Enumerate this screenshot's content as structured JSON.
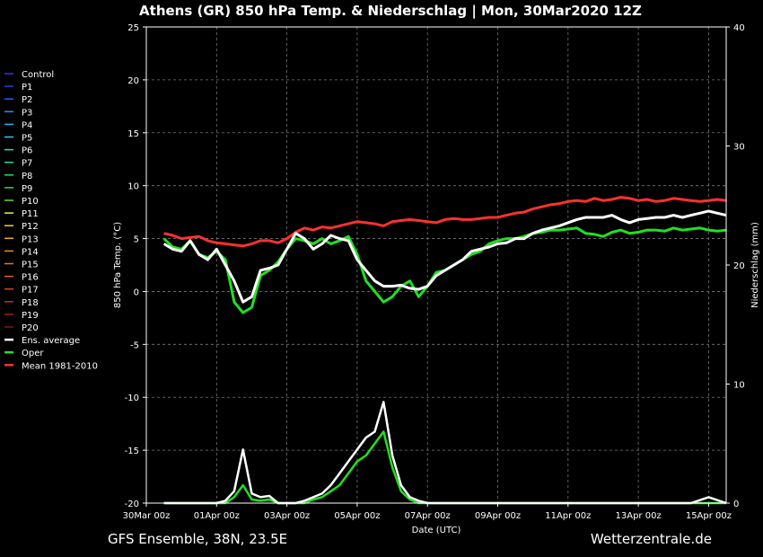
{
  "chart_data": {
    "type": "line",
    "title": "Athens  (GR)  850 hPa Temp. & Niederschlag | Mon, 30Mar2020 12Z",
    "xlabel": "Date (UTC)",
    "ylabel": "850 hPa Temp. (°C)",
    "y2label": "Niederschlag (mm)",
    "footer_left": "GFS Ensemble, 38N, 23.5E",
    "footer_right": "Wetterzentrale.de",
    "ylim": [
      -20,
      25
    ],
    "y2lim": [
      0,
      40
    ],
    "yticks": [
      25,
      20,
      15,
      10,
      5,
      0,
      -5,
      -10,
      -15,
      -20
    ],
    "y2ticks": [
      40,
      30,
      20,
      10,
      0
    ],
    "xlim": [
      0,
      16.5
    ],
    "xticks": [
      {
        "x": 0,
        "label": "30Mar 00z"
      },
      {
        "x": 2,
        "label": "01Apr 00z"
      },
      {
        "x": 4,
        "label": "03Apr 00z"
      },
      {
        "x": 6,
        "label": "05Apr 00z"
      },
      {
        "x": 8,
        "label": "07Apr 00z"
      },
      {
        "x": 10,
        "label": "09Apr 00z"
      },
      {
        "x": 12,
        "label": "11Apr 00z"
      },
      {
        "x": 14,
        "label": "13Apr 00z"
      },
      {
        "x": 16,
        "label": "15Apr 00z"
      }
    ],
    "grid": true,
    "legend_position": "left",
    "legend": [
      {
        "name": "Control",
        "color": "#3030ff"
      },
      {
        "name": "P1",
        "color": "#2040e0"
      },
      {
        "name": "P2",
        "color": "#2060ff"
      },
      {
        "name": "P3",
        "color": "#2090ff"
      },
      {
        "name": "P4",
        "color": "#20b0ff"
      },
      {
        "name": "P5",
        "color": "#20d0f0"
      },
      {
        "name": "P6",
        "color": "#20e0c0"
      },
      {
        "name": "P7",
        "color": "#20e090"
      },
      {
        "name": "P8",
        "color": "#20e060"
      },
      {
        "name": "P9",
        "color": "#30e030"
      },
      {
        "name": "P10",
        "color": "#60e020"
      },
      {
        "name": "P11",
        "color": "#f0f040"
      },
      {
        "name": "P12",
        "color": "#f0d030"
      },
      {
        "name": "P13",
        "color": "#f0b020"
      },
      {
        "name": "P14",
        "color": "#f09020"
      },
      {
        "name": "P15",
        "color": "#f07020"
      },
      {
        "name": "P16",
        "color": "#e06020"
      },
      {
        "name": "P17",
        "color": "#e04020"
      },
      {
        "name": "P18",
        "color": "#c03020"
      },
      {
        "name": "P19",
        "color": "#a02020"
      },
      {
        "name": "P20",
        "color": "#801818"
      },
      {
        "name": "Ens. average",
        "color": "#ffffff"
      },
      {
        "name": "Oper",
        "color": "#20e020"
      },
      {
        "name": "Mean 1981-2010",
        "color": "#ff3030"
      }
    ],
    "temp_x": [
      0.5,
      0.75,
      1,
      1.25,
      1.5,
      1.75,
      2,
      2.25,
      2.5,
      2.75,
      3,
      3.25,
      3.5,
      3.75,
      4,
      4.25,
      4.5,
      4.75,
      5,
      5.25,
      5.5,
      5.75,
      6,
      6.25,
      6.5,
      6.75,
      7,
      7.25,
      7.5,
      7.75,
      8,
      8.25,
      8.5,
      8.75,
      9,
      9.25,
      9.5,
      9.75,
      10,
      10.25,
      10.5,
      10.75,
      11,
      11.25,
      11.5,
      11.75,
      12,
      12.25,
      12.5,
      12.75,
      13,
      13.25,
      13.5,
      13.75,
      14,
      14.25,
      14.5,
      14.75,
      15,
      15.25,
      15.5,
      15.75,
      16,
      16.25,
      16.5
    ],
    "ens_average": [
      4.5,
      4.0,
      3.8,
      4.8,
      3.5,
      3.0,
      4.0,
      2.5,
      1.0,
      -1.0,
      -0.5,
      2.0,
      2.2,
      2.5,
      4.0,
      5.5,
      5.0,
      4.0,
      4.5,
      5.3,
      5.0,
      4.8,
      3.0,
      2.0,
      1.0,
      0.5,
      0.5,
      0.6,
      0.3,
      0.2,
      0.5,
      1.5,
      2.0,
      2.5,
      3.0,
      3.8,
      4.0,
      4.2,
      4.5,
      4.6,
      5.0,
      5.0,
      5.5,
      5.8,
      6.0,
      6.2,
      6.5,
      6.8,
      7.0,
      7.0,
      7.0,
      7.2,
      6.8,
      6.5,
      6.8,
      6.9,
      7.0,
      7.0,
      7.2,
      7.0,
      7.2,
      7.4,
      7.6,
      7.4,
      7.2
    ],
    "oper": [
      5.0,
      4.2,
      4.0,
      4.8,
      3.5,
      3.2,
      3.8,
      3.0,
      -1.0,
      -2.0,
      -1.5,
      1.5,
      2.0,
      2.8,
      4.0,
      5.0,
      4.8,
      4.5,
      5.0,
      4.5,
      4.8,
      5.2,
      3.5,
      1.0,
      0.0,
      -1.0,
      -0.5,
      0.5,
      1.0,
      -0.5,
      0.5,
      1.8,
      2.0,
      2.5,
      3.0,
      3.5,
      3.8,
      4.5,
      4.8,
      5.0,
      5.0,
      5.2,
      5.5,
      5.6,
      5.8,
      5.8,
      5.9,
      6.0,
      5.5,
      5.4,
      5.2,
      5.6,
      5.8,
      5.5,
      5.6,
      5.8,
      5.8,
      5.7,
      6.0,
      5.8,
      5.9,
      6.0,
      5.8,
      5.7,
      5.8
    ],
    "mean_1981_2010": [
      5.5,
      5.3,
      5.0,
      5.1,
      5.2,
      4.8,
      4.6,
      4.5,
      4.4,
      4.3,
      4.5,
      4.8,
      4.8,
      4.6,
      5.0,
      5.6,
      6.0,
      5.8,
      6.1,
      6.0,
      6.2,
      6.4,
      6.6,
      6.5,
      6.4,
      6.2,
      6.6,
      6.7,
      6.8,
      6.7,
      6.6,
      6.5,
      6.8,
      6.9,
      6.8,
      6.8,
      6.9,
      7.0,
      7.0,
      7.2,
      7.4,
      7.5,
      7.8,
      8.0,
      8.2,
      8.3,
      8.5,
      8.6,
      8.5,
      8.8,
      8.6,
      8.7,
      8.9,
      8.8,
      8.6,
      8.7,
      8.5,
      8.6,
      8.8,
      8.7,
      8.6,
      8.5,
      8.6,
      8.7,
      8.6
    ],
    "precip_x": [
      0.5,
      1,
      1.5,
      1.75,
      2,
      2.25,
      2.5,
      2.75,
      3,
      3.25,
      3.5,
      3.75,
      4,
      4.25,
      4.5,
      4.75,
      5,
      5.25,
      5.5,
      5.75,
      6,
      6.25,
      6.5,
      6.75,
      7,
      7.25,
      7.5,
      7.75,
      8,
      8.5,
      9,
      10,
      11,
      12,
      13,
      14,
      15,
      15.5,
      16,
      16.5
    ],
    "precip_ens_average": [
      0,
      0,
      0,
      0,
      0,
      0.2,
      1.0,
      4.5,
      0.8,
      0.5,
      0.6,
      0,
      0,
      0,
      0.2,
      0.5,
      0.8,
      1.5,
      2.5,
      3.5,
      4.5,
      5.5,
      6.0,
      8.5,
      4.0,
      1.5,
      0.5,
      0.2,
      0,
      0,
      0,
      0,
      0,
      0,
      0,
      0,
      0,
      0,
      0.5,
      0
    ],
    "precip_oper": [
      0,
      0,
      0,
      0,
      0,
      0,
      0.5,
      1.5,
      0.3,
      0.2,
      0.3,
      0,
      0,
      0,
      0,
      0.3,
      0.5,
      1.0,
      1.5,
      2.5,
      3.5,
      4.0,
      5.0,
      6.0,
      3.0,
      1.0,
      0.3,
      0,
      0,
      0,
      0,
      0,
      0,
      0,
      0,
      0,
      0,
      0,
      0,
      0
    ]
  }
}
